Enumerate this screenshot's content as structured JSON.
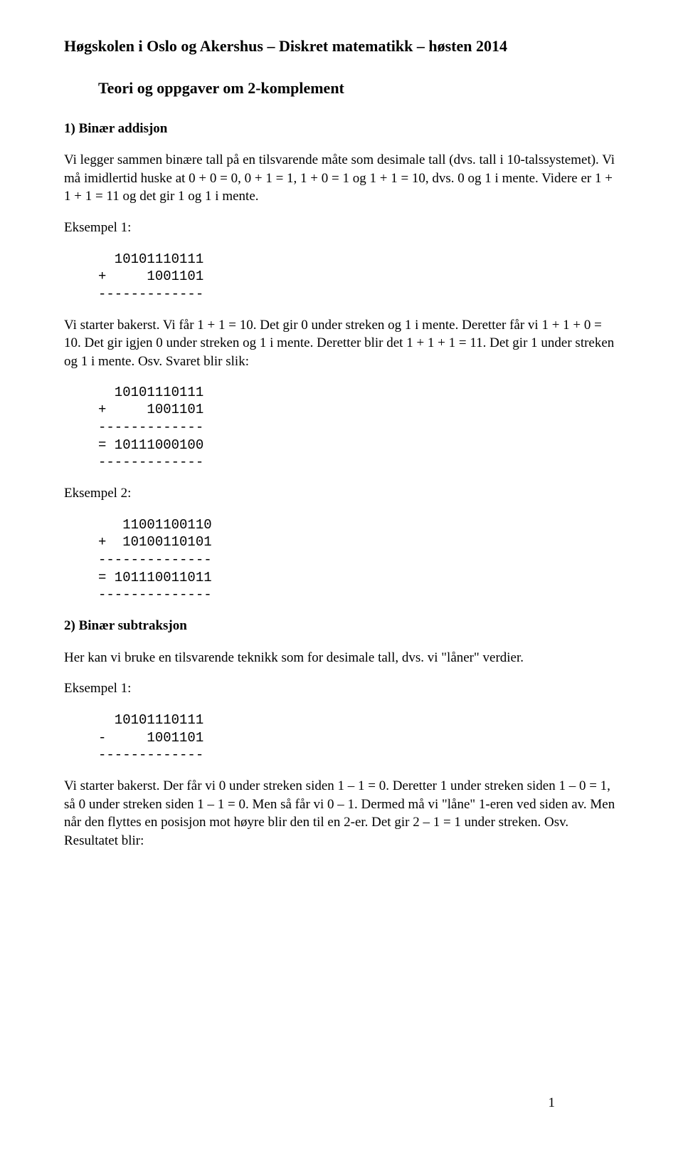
{
  "header": "Høgskolen i Oslo og Akershus – Diskret matematikk – høsten 2014",
  "subtitle": "Teori og oppgaver om 2-komplement",
  "section1": {
    "heading": "1) Binær addisjon",
    "para1": "Vi legger sammen binære tall på en tilsvarende måte som desimale tall (dvs. tall i 10-talssystemet). Vi må imidlertid huske at 0 + 0 = 0, 0 + 1 = 1, 1 + 0 = 1 og 1 + 1 = 10, dvs. 0 og 1 i mente. Videre er 1 + 1 + 1 = 11 og det gir 1 og 1 i mente.",
    "ex1_label": "Eksempel 1:",
    "ex1_code": "  10101110111\n+     1001101\n-------------",
    "para2": "Vi starter bakerst. Vi får 1 + 1 = 10. Det gir 0 under streken og 1 i mente. Deretter får vi 1 + 1 + 0 = 10. Det gir igjen 0 under streken og 1 i mente. Deretter blir det 1 + 1 + 1 = 11. Det gir 1 under streken og 1 i mente. Osv. Svaret blir slik:",
    "ex1_result": "  10101110111\n+     1001101\n-------------\n= 10111000100\n-------------",
    "ex2_label": "Eksempel 2:",
    "ex2_code": "   11001100110\n+  10100110101\n--------------\n= 101110011011\n--------------"
  },
  "section2": {
    "heading": "2) Binær subtraksjon",
    "para1": "Her kan vi bruke en tilsvarende teknikk som for desimale tall, dvs. vi \"låner\" verdier.",
    "ex1_label": "Eksempel 1:",
    "ex1_code": "  10101110111\n-     1001101\n-------------",
    "para2": "Vi starter bakerst. Der får vi 0 under streken siden 1 – 1 = 0. Deretter 1 under streken siden 1 – 0 = 1, så 0 under streken siden 1 – 1 = 0. Men så får vi 0 – 1. Dermed må vi \"låne\" 1-eren ved siden av. Men når den flyttes en posisjon mot høyre blir den til en 2-er. Det gir 2 – 1 = 1 under streken. Osv. Resultatet blir:"
  },
  "page_number": "1"
}
